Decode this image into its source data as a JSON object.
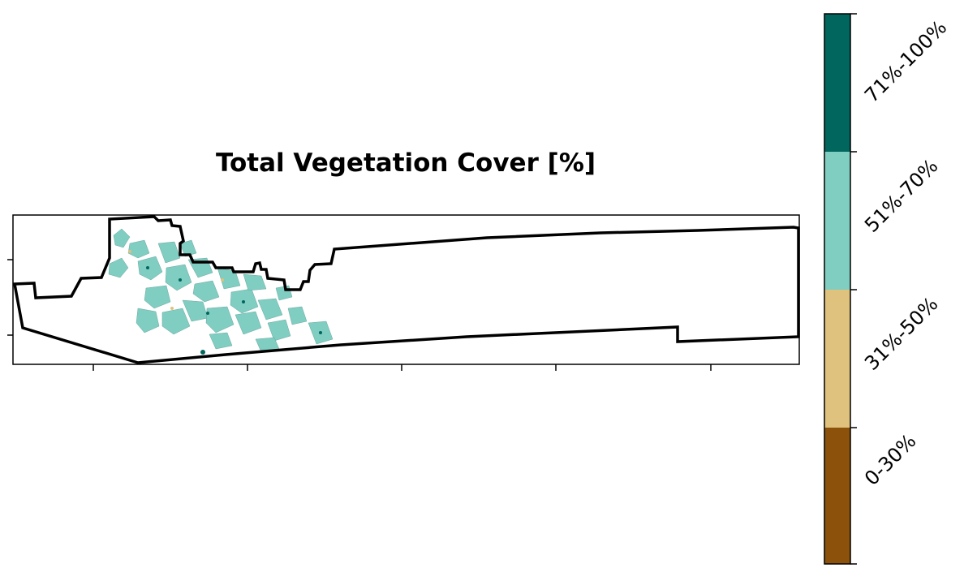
{
  "title": "Total Vegetation Cover [%]",
  "legend": {
    "classes": [
      {
        "label": "71%-100%",
        "color": "#01665e"
      },
      {
        "label": "51%-70%",
        "color": "#80cdc1"
      },
      {
        "label": "31%-50%",
        "color": "#dfc27d"
      },
      {
        "label": "0-30%",
        "color": "#8c510a"
      }
    ]
  },
  "map": {
    "boundary_color": "#000000",
    "dominant_class": "51%-70%"
  }
}
